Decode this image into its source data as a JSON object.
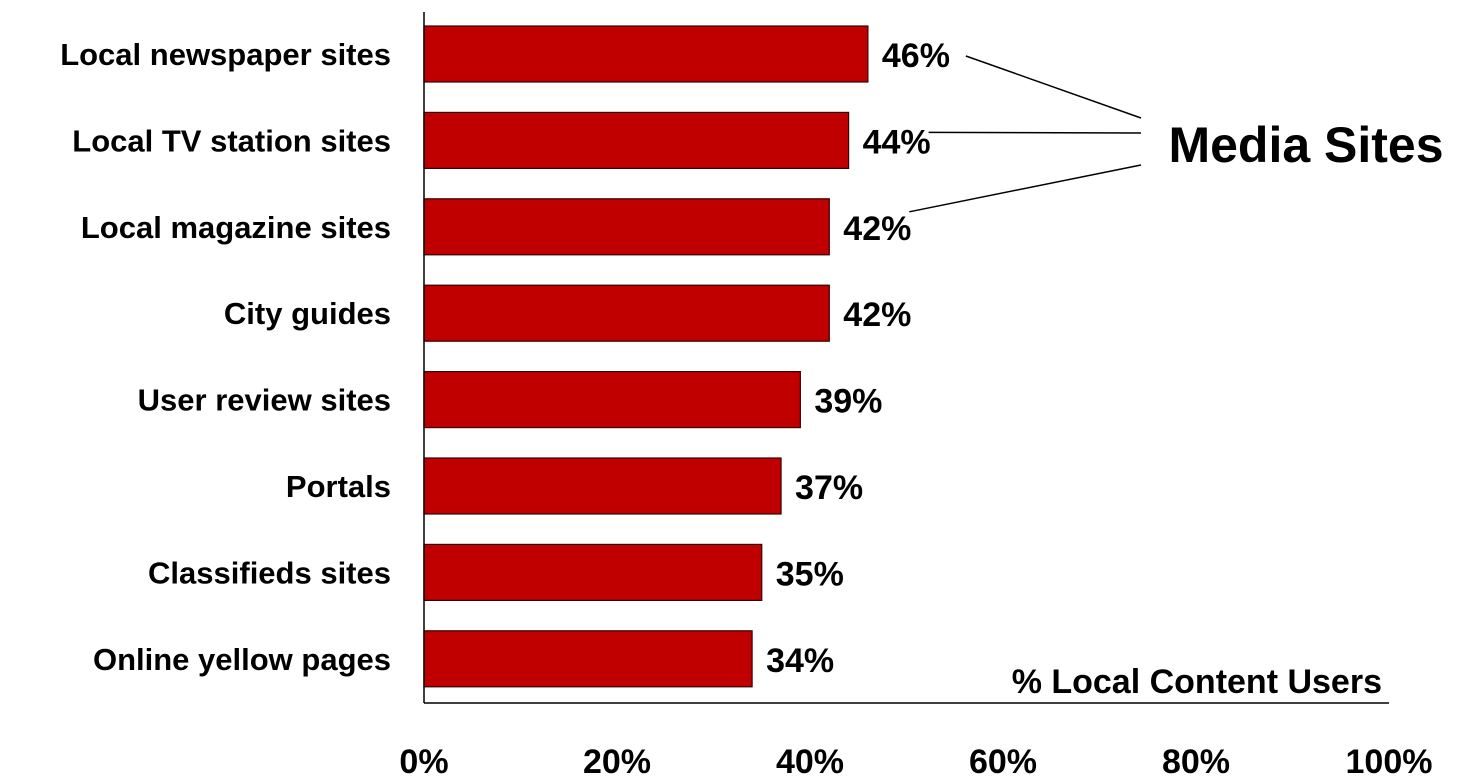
{
  "chart_data": {
    "type": "bar",
    "orientation": "horizontal",
    "categories": [
      "Local newspaper sites",
      "Local TV station sites",
      "Local magazine sites",
      "City guides",
      "User review sites",
      "Portals",
      "Classifieds sites",
      "Online yellow pages"
    ],
    "values": [
      46,
      44,
      42,
      42,
      39,
      37,
      35,
      34
    ],
    "value_labels": [
      "46%",
      "44%",
      "42%",
      "42%",
      "39%",
      "37%",
      "35%",
      "34%"
    ],
    "x_ticks": [
      "0%",
      "20%",
      "40%",
      "60%",
      "80%",
      "100%"
    ],
    "xlim": [
      0,
      100
    ],
    "xlabel": "% Local Content Users",
    "annotation": {
      "text": "Media Sites",
      "points_to": [
        "Local newspaper sites",
        "Local TV station sites",
        "Local magazine sites"
      ]
    },
    "grid": false,
    "bar_color": "#c00000"
  }
}
